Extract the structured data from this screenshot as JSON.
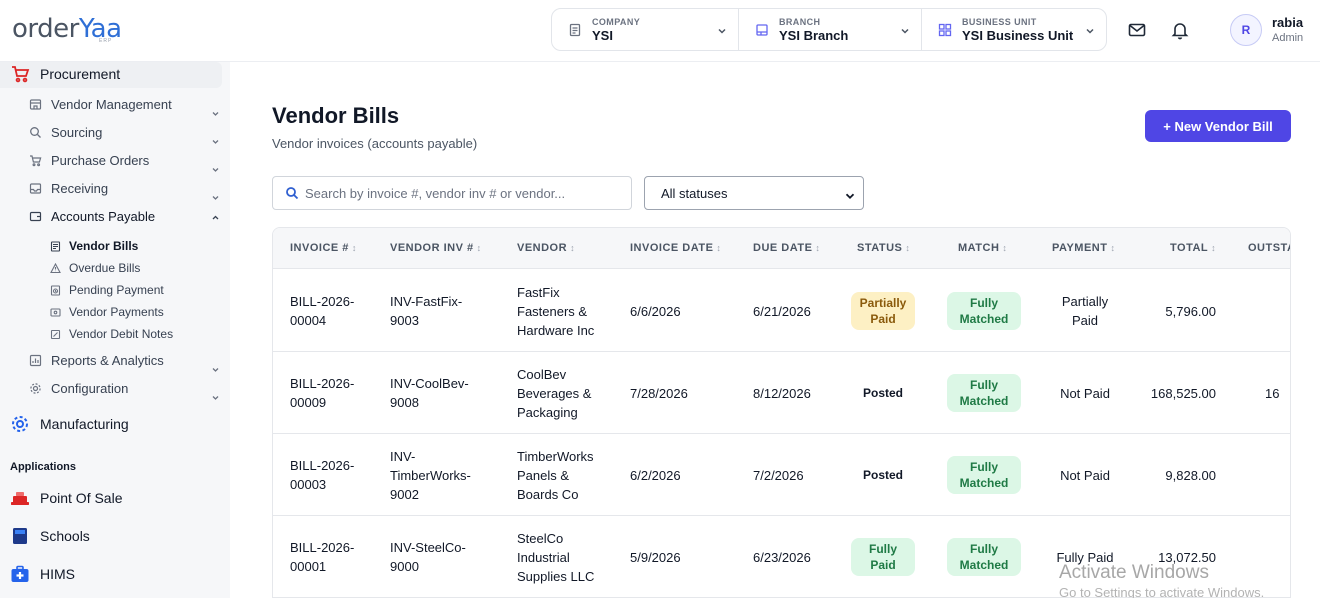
{
  "app": {
    "logo_main": "order",
    "logo_accent": "Yaa",
    "logo_sub": "ERP"
  },
  "context": {
    "company": {
      "caption": "COMPANY",
      "value": "YSI"
    },
    "branch": {
      "caption": "BRANCH",
      "value": "YSI Branch"
    },
    "business_unit": {
      "caption": "BUSINESS UNIT",
      "value": "YSI Business Unit"
    }
  },
  "user": {
    "initial": "R",
    "name": "rabia",
    "role": "Admin"
  },
  "sidebar": {
    "procurement": "Procurement",
    "items": [
      {
        "label": "Vendor Management"
      },
      {
        "label": "Sourcing"
      },
      {
        "label": "Purchase Orders"
      },
      {
        "label": "Receiving"
      },
      {
        "label": "Accounts Payable"
      },
      {
        "label": "Reports & Analytics"
      },
      {
        "label": "Configuration"
      }
    ],
    "ap_children": [
      {
        "label": "Vendor Bills"
      },
      {
        "label": "Overdue Bills"
      },
      {
        "label": "Pending Payment"
      },
      {
        "label": "Vendor Payments"
      },
      {
        "label": "Vendor Debit Notes"
      }
    ],
    "manufacturing": "Manufacturing",
    "applications_heading": "Applications",
    "apps": [
      {
        "label": "Point Of Sale"
      },
      {
        "label": "Schools"
      },
      {
        "label": "HIMS"
      }
    ]
  },
  "page": {
    "title": "Vendor Bills",
    "subtitle": "Vendor invoices (accounts payable)",
    "new_button": "+ New Vendor Bill",
    "search_placeholder": "Search by invoice #, vendor inv # or vendor...",
    "status_filter": "All statuses"
  },
  "table": {
    "headers": [
      "INVOICE #",
      "VENDOR INV #",
      "VENDOR",
      "INVOICE DATE",
      "DUE DATE",
      "STATUS",
      "MATCH",
      "PAYMENT",
      "TOTAL",
      "OUTSTA"
    ],
    "rows": [
      {
        "invoice": [
          "BILL-2026-",
          "00004"
        ],
        "vendor_inv": [
          "INV-FastFix-",
          "9003"
        ],
        "vendor": [
          "FastFix",
          "Fasteners &",
          "Hardware Inc"
        ],
        "invoice_date": "6/6/2026",
        "due_date": "6/21/2026",
        "status": [
          "Partially",
          "Paid"
        ],
        "match": [
          "Fully",
          "Matched"
        ],
        "payment": [
          "Partially",
          "Paid"
        ],
        "total": "5,796.00",
        "outstanding": ""
      },
      {
        "invoice": [
          "BILL-2026-",
          "00009"
        ],
        "vendor_inv": [
          "INV-CoolBev-",
          "9008"
        ],
        "vendor": [
          "CoolBev",
          "Beverages &",
          "Packaging"
        ],
        "invoice_date": "7/28/2026",
        "due_date": "8/12/2026",
        "status": [
          "Posted"
        ],
        "match": [
          "Fully",
          "Matched"
        ],
        "payment": [
          "Not Paid"
        ],
        "total": "168,525.00",
        "outstanding": "16"
      },
      {
        "invoice": [
          "BILL-2026-",
          "00003"
        ],
        "vendor_inv": [
          "INV-",
          "TimberWorks-",
          "9002"
        ],
        "vendor": [
          "TimberWorks",
          "Panels &",
          "Boards Co"
        ],
        "invoice_date": "6/2/2026",
        "due_date": "7/2/2026",
        "status": [
          "Posted"
        ],
        "match": [
          "Fully",
          "Matched"
        ],
        "payment": [
          "Not Paid"
        ],
        "total": "9,828.00",
        "outstanding": ""
      },
      {
        "invoice": [
          "BILL-2026-",
          "00001"
        ],
        "vendor_inv": [
          "INV-SteelCo-",
          "9000"
        ],
        "vendor": [
          "SteelCo",
          "Industrial",
          "Supplies LLC"
        ],
        "invoice_date": "5/9/2026",
        "due_date": "6/23/2026",
        "status": [
          "Fully",
          "Paid"
        ],
        "match": [
          "Fully",
          "Matched"
        ],
        "payment": [
          "Fully Paid"
        ],
        "total": "13,072.50",
        "outstanding": ""
      }
    ]
  },
  "watermark": {
    "line1": "Activate Windows",
    "line2": "Go to Settings to activate Windows."
  }
}
